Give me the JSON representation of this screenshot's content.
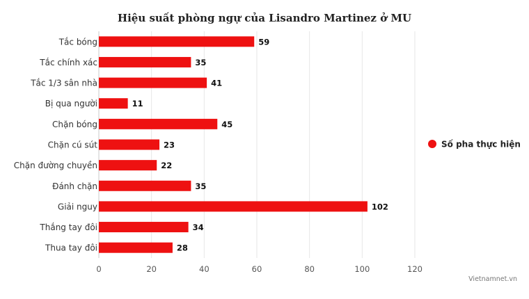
{
  "chart_data": {
    "type": "bar",
    "orientation": "horizontal",
    "title": "Hiệu suất phòng ngự của Lisandro Martinez ở MU",
    "categories": [
      "Tắc bóng",
      "Tắc chính xác",
      "Tắc 1/3 sân nhà",
      "Bị qua người",
      "Chặn bóng",
      "Chặn cú sút",
      "Chặn đường chuyền",
      "Đánh chặn",
      "Giải nguy",
      "Thắng tay đôi",
      "Thua tay đôi"
    ],
    "series": [
      {
        "name": "Số pha thực hiện",
        "values": [
          59,
          35,
          41,
          11,
          45,
          23,
          22,
          35,
          102,
          34,
          28
        ],
        "color": "#ee1111"
      }
    ],
    "xlim": [
      0,
      120
    ],
    "xticks": [
      0,
      20,
      40,
      60,
      80,
      100,
      120
    ],
    "xlabel": "",
    "ylabel": "",
    "grid": true,
    "legend_position": "right",
    "data_labels": true
  },
  "credit": "Vietnamnet.vn"
}
